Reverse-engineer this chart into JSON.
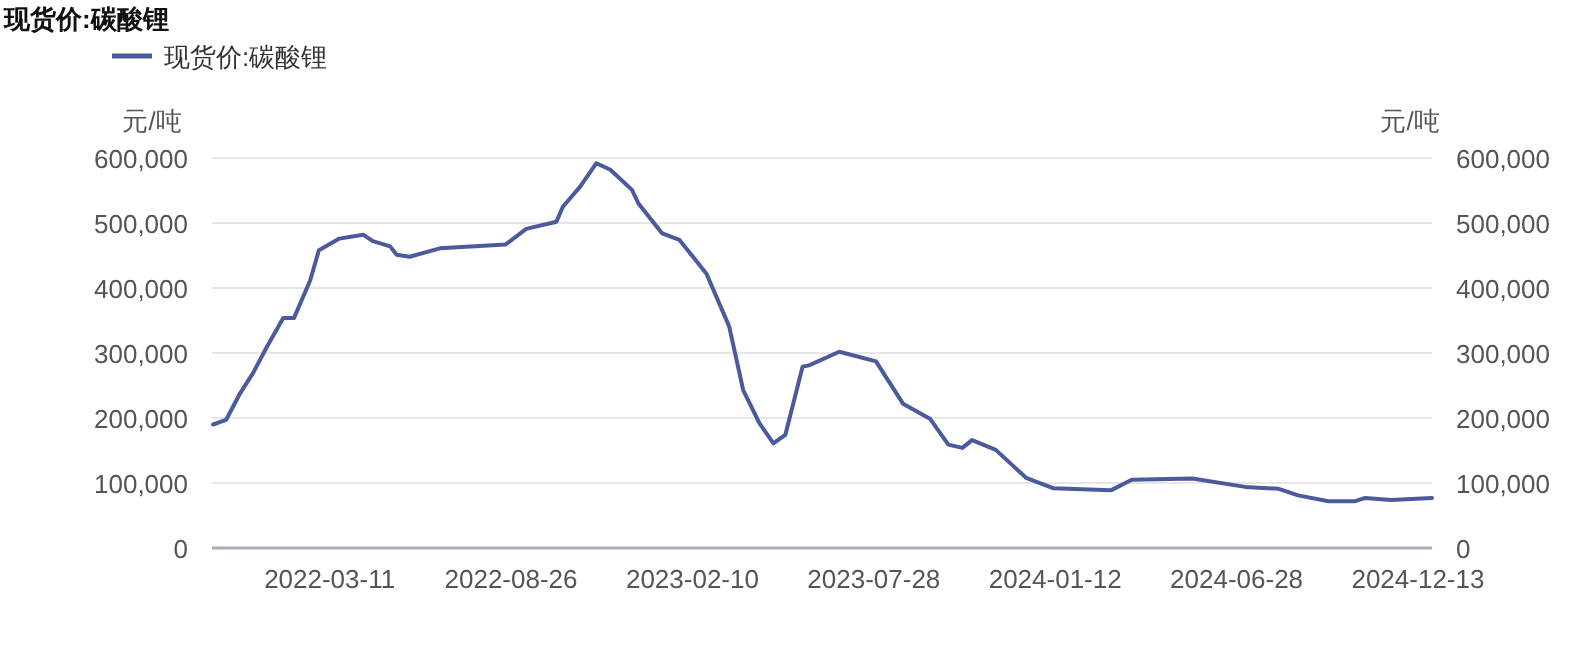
{
  "chart_data": {
    "type": "line",
    "title": "现货价:碳酸锂",
    "ylabel": "元/吨",
    "y2label": "元/吨",
    "legend": "top left",
    "grid": "y",
    "marker": "none",
    "line_style": "solid",
    "xlim": [
      "2021-11-22",
      "2024-12-26"
    ],
    "xticks": [
      "2022-03-11",
      "2022-08-26",
      "2023-02-10",
      "2023-07-28",
      "2024-01-12",
      "2024-06-28",
      "2024-12-13"
    ],
    "ylim": [
      0,
      600000
    ],
    "yticks": [
      0,
      {
        "value": 100000,
        "label": "100,000"
      },
      {
        "value": 200000,
        "label": "200,000"
      },
      {
        "value": 300000,
        "label": "300,000"
      },
      {
        "value": 400000,
        "label": "400,000"
      },
      {
        "value": 500000,
        "label": "500,000"
      },
      {
        "value": 600000,
        "label": "600,000"
      }
    ],
    "y2lim": [
      0,
      600000
    ],
    "y2ticks": [
      0,
      {
        "value": 100000,
        "label": "100,000"
      },
      {
        "value": 200000,
        "label": "200,000"
      },
      {
        "value": 300000,
        "label": "300,000"
      },
      {
        "value": 400000,
        "label": "400,000"
      },
      {
        "value": 500000,
        "label": "500,000"
      },
      {
        "value": 600000,
        "label": "600,000"
      }
    ],
    "series": [
      {
        "name": "现货价:碳酸锂",
        "color": "#4a5a9c",
        "x": [
          "2021-11-23",
          "2021-12-05",
          "2021-12-18",
          "2021-12-30",
          "2022-01-12",
          "2022-01-27",
          "2022-02-06",
          "2022-02-21",
          "2022-03-01",
          "2022-03-20",
          "2022-04-11",
          "2022-04-20",
          "2022-05-06",
          "2022-05-12",
          "2022-05-24",
          "2022-06-21",
          "2022-08-21",
          "2022-09-09",
          "2022-10-07",
          "2022-10-13",
          "2022-10-29",
          "2022-11-13",
          "2022-11-26",
          "2022-12-16",
          "2022-12-22",
          "2023-01-13",
          "2023-01-29",
          "2023-02-23",
          "2023-03-16",
          "2023-03-29",
          "2023-04-13",
          "2023-04-26",
          "2023-05-07",
          "2023-05-23",
          "2023-05-29",
          "2023-06-26",
          "2023-07-30",
          "2023-08-24",
          "2023-09-18",
          "2023-10-05",
          "2023-10-18",
          "2023-10-27",
          "2023-11-18",
          "2023-12-16",
          "2024-01-10",
          "2024-03-04",
          "2024-03-23",
          "2024-05-18",
          "2024-07-06",
          "2024-08-06",
          "2024-08-24",
          "2024-09-21",
          "2024-10-16",
          "2024-10-25",
          "2024-11-18",
          "2024-12-26"
        ],
        "values": [
          190000,
          197000,
          238000,
          269000,
          310000,
          354000,
          354000,
          412000,
          458000,
          476000,
          482000,
          472000,
          464000,
          451000,
          448000,
          461000,
          467000,
          491000,
          502000,
          525000,
          556000,
          592000,
          582000,
          551000,
          530000,
          484000,
          474000,
          422000,
          341000,
          243000,
          192000,
          161000,
          174000,
          279000,
          281000,
          302000,
          287000,
          222000,
          199000,
          159000,
          154000,
          166000,
          151000,
          108000,
          92000,
          89000,
          105000,
          107000,
          94000,
          91000,
          81000,
          72000,
          72000,
          77000,
          74000,
          77000
        ]
      }
    ]
  }
}
